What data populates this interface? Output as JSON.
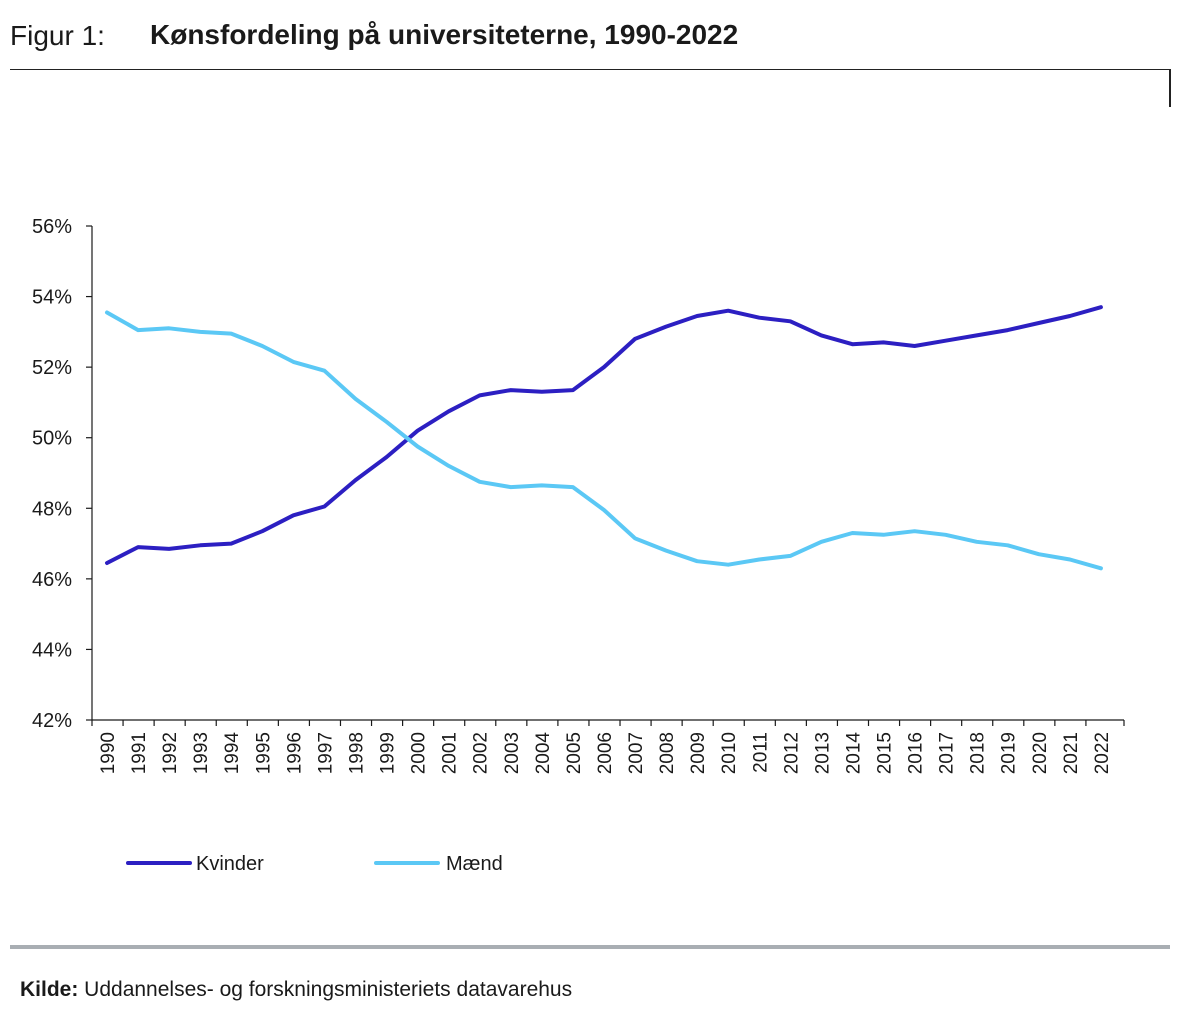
{
  "header": {
    "figure_label": "Figur 1:",
    "title": "Kønsfordeling på universiteterne, 1990-2022"
  },
  "footer": {
    "source_label": "Kilde:",
    "source_text": " Uddannelses- og forskningsministeriets datavarehus"
  },
  "colors": {
    "kvinder": "#2c1fc2",
    "maend": "#5bc8f5",
    "axis": "#1a1a1a"
  },
  "chart_data": {
    "type": "line",
    "x": [
      "1990",
      "1991",
      "1992",
      "1993",
      "1994",
      "1995",
      "1996",
      "1997",
      "1998",
      "1999",
      "2000",
      "2001",
      "2002",
      "2003",
      "2004",
      "2005",
      "2006",
      "2007",
      "2008",
      "2009",
      "2010",
      "2011",
      "2012",
      "2013",
      "2014",
      "2015",
      "2016",
      "2017",
      "2018",
      "2019",
      "2020",
      "2021",
      "2022"
    ],
    "series": [
      {
        "name": "Kvinder",
        "color": "#2c1fc2",
        "values": [
          46.45,
          46.9,
          46.85,
          46.95,
          47.0,
          47.35,
          47.8,
          48.05,
          48.8,
          49.45,
          50.2,
          50.75,
          51.2,
          51.35,
          51.3,
          51.35,
          52.0,
          52.8,
          53.15,
          53.45,
          53.6,
          53.4,
          53.3,
          52.9,
          52.65,
          52.7,
          52.6,
          52.75,
          52.9,
          53.05,
          53.25,
          53.45,
          53.7
        ]
      },
      {
        "name": "Mænd",
        "color": "#5bc8f5",
        "values": [
          53.55,
          53.05,
          53.1,
          53.0,
          52.95,
          52.6,
          52.15,
          51.9,
          51.1,
          50.45,
          49.75,
          49.2,
          48.75,
          48.6,
          48.65,
          48.6,
          47.95,
          47.15,
          46.8,
          46.5,
          46.4,
          46.55,
          46.65,
          47.05,
          47.3,
          47.25,
          47.35,
          47.25,
          47.05,
          46.95,
          46.7,
          46.55,
          46.3
        ]
      }
    ],
    "yticks": [
      "42%",
      "44%",
      "46%",
      "48%",
      "50%",
      "52%",
      "54%",
      "56%"
    ],
    "ylim": [
      42,
      56
    ],
    "grid": false,
    "legend": "bottom-left"
  }
}
